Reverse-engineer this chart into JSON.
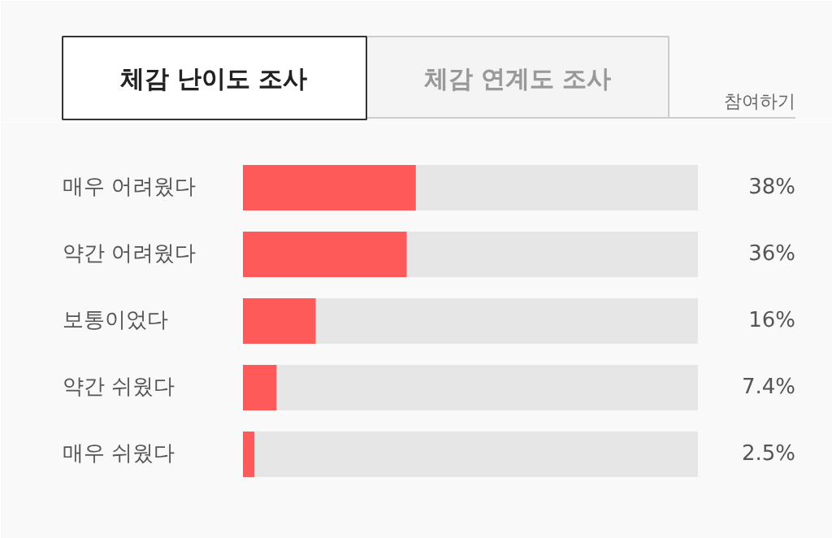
{
  "chart_data": {
    "type": "bar",
    "orientation": "horizontal",
    "title": "체감 난이도 조사",
    "annotations": [
      "체감 연계도 조사",
      "참여하기"
    ],
    "categories": [
      "매우 어려웠다",
      "약간 어려웠다",
      "보통이었다",
      "약간 쉬웠다",
      "매우 쉬웠다"
    ],
    "values": [
      38,
      36,
      16,
      7.4,
      2.5
    ],
    "color": "#ff5a5a",
    "xlim": [
      0,
      100
    ],
    "value_labels": [
      "38%",
      "36%",
      "16%",
      "7.4%",
      "2.5%"
    ],
    "tick_labels": false
  }
}
